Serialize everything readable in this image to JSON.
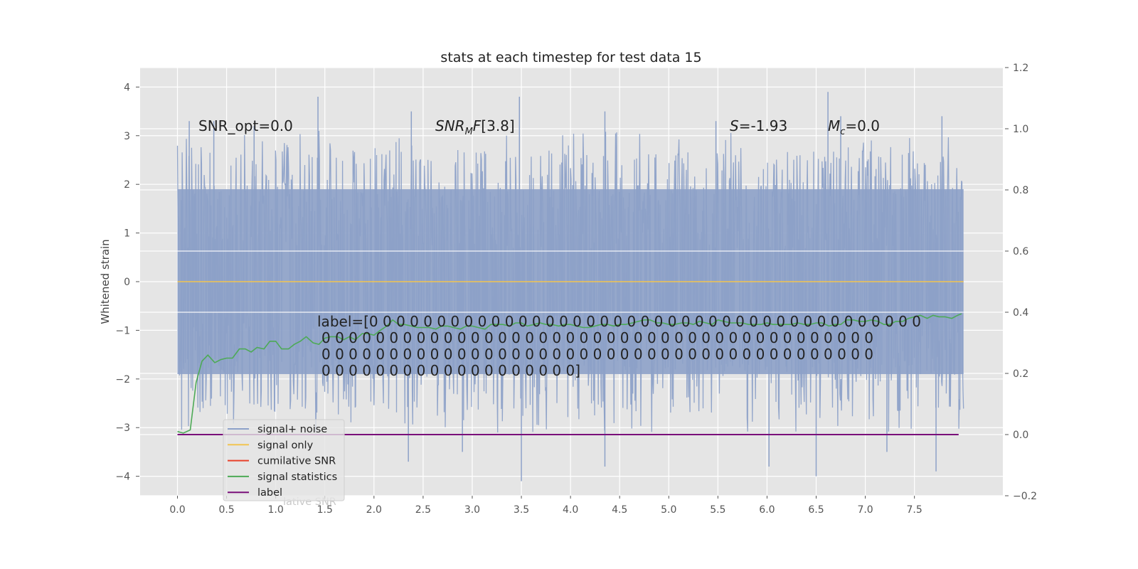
{
  "chart_data": {
    "type": "line",
    "title": "stats at each timestep for test data 15",
    "ylabel": "Whitened strain",
    "xlim": [
      -0.38,
      8.4
    ],
    "ylim": [
      -4.4,
      4.4
    ],
    "y2lim": [
      -0.2,
      1.2
    ],
    "grid": true,
    "x_ticks": [
      "0.0",
      "0.5",
      "1.0",
      "1.5",
      "2.0",
      "2.5",
      "3.0",
      "3.5",
      "4.0",
      "4.5",
      "5.0",
      "5.5",
      "6.0",
      "6.5",
      "7.0",
      "7.5"
    ],
    "y_ticks": [
      "4",
      "3",
      "2",
      "1",
      "0",
      "−1",
      "−2",
      "−3",
      "−4"
    ],
    "y2_ticks": [
      "1.2",
      "1.0",
      "0.8",
      "0.6",
      "0.4",
      "0.2",
      "0.0",
      "−0.2"
    ],
    "annotations": {
      "snr_opt": "SNR_opt=0.0",
      "snr_mf": "[3.8]",
      "s_stat": "=-1.93",
      "mc": "=0.0",
      "label_line1": "label=[0 0 0 0 0 0 0 0 0 0 0 0 0 0 0 0 0 0 0 0 0 0 0 0 0 0 0 0 0 0 0 0 0 0 0 0 0 0 0 0 0",
      "label_line2": "0 0 0 0 0 0 0 0 0 0 0 0 0 0 0 0 0 0 0 0 0 0 0 0 0 0 0 0 0 0 0 0 0 0 0 0 0 0 0 0 0",
      "label_line3": "0 0 0 0 0 0 0 0 0 0 0 0 0 0 0 0 0 0 0 0 0 0 0 0 0 0 0 0 0 0 0 0 0 0 0 0 0 0 0 0 0",
      "label_line4": "0 0 0 0 0 0 0 0 0 0 0 0 0 0 0 0 0 0 0]"
    },
    "legend": {
      "placement": "lower-left",
      "entries": [
        {
          "label": "signal+ noise",
          "color": "#8da1c8"
        },
        {
          "label": "signal only",
          "color": "#f2c451"
        },
        {
          "label": "cumilative SNR",
          "color": "#e8412b"
        },
        {
          "label": "signal statistics",
          "color": "#4daa56"
        },
        {
          "label": "label",
          "color": "#7a0f7a"
        }
      ],
      "overflow_text": "lative SNR"
    },
    "series": [
      {
        "name": "signal+ noise",
        "axis": "left",
        "color": "#8da1c8",
        "style": "dense-noise",
        "x_range": [
          0.0,
          8.0
        ],
        "band_range": [
          -1.9,
          1.9
        ],
        "typical_peak": [
          2.6,
          3.1
        ],
        "spikes": [
          {
            "x": 0.12,
            "y": 3.3
          },
          {
            "x": 0.37,
            "y": 3.3
          },
          {
            "x": 0.78,
            "y": 3.2
          },
          {
            "x": 1.43,
            "y": 3.8
          },
          {
            "x": 2.38,
            "y": 3.5
          },
          {
            "x": 3.48,
            "y": 3.8
          },
          {
            "x": 4.35,
            "y": 3.5
          },
          {
            "x": 5.48,
            "y": 3.3
          },
          {
            "x": 6.62,
            "y": 3.9
          },
          {
            "x": 6.75,
            "y": 3.4
          },
          {
            "x": 7.78,
            "y": 3.4
          },
          {
            "x": 2.35,
            "y": -3.7
          },
          {
            "x": 2.9,
            "y": -3.5
          },
          {
            "x": 3.5,
            "y": -4.1
          },
          {
            "x": 4.35,
            "y": -3.8
          },
          {
            "x": 6.02,
            "y": -3.8
          },
          {
            "x": 6.5,
            "y": -4.0
          },
          {
            "x": 7.22,
            "y": -3.5
          },
          {
            "x": 7.72,
            "y": -3.9
          }
        ]
      },
      {
        "name": "signal only",
        "axis": "left",
        "color": "#f2c451",
        "x": [
          0.0,
          8.0
        ],
        "y": [
          0.0,
          0.0
        ]
      },
      {
        "name": "signal statistics",
        "axis": "right",
        "color": "#4daa56",
        "x": [
          0.0,
          0.06,
          0.13,
          0.19,
          0.25,
          0.31,
          0.38,
          0.44,
          0.5,
          0.56,
          0.63,
          0.69,
          0.75,
          0.81,
          0.88,
          0.94,
          1.0,
          1.06,
          1.13,
          1.19,
          1.25,
          1.31,
          1.38,
          1.44,
          1.5,
          1.56,
          1.63,
          1.69,
          1.75,
          1.81,
          1.88,
          1.94,
          2.0,
          2.06,
          2.13,
          2.19,
          2.25,
          2.31,
          2.38,
          2.44,
          2.5,
          2.56,
          2.63,
          2.69,
          2.75,
          2.81,
          2.88,
          2.94,
          3.0,
          3.06,
          3.13,
          3.19,
          3.25,
          3.31,
          3.38,
          3.44,
          3.5,
          3.56,
          3.63,
          3.69,
          3.75,
          3.81,
          3.88,
          3.94,
          4.0,
          4.06,
          4.13,
          4.19,
          4.25,
          4.31,
          4.38,
          4.44,
          4.5,
          4.56,
          4.63,
          4.69,
          4.75,
          4.81,
          4.88,
          4.94,
          5.0,
          5.06,
          5.13,
          5.19,
          5.25,
          5.31,
          5.38,
          5.44,
          5.5,
          5.56,
          5.63,
          5.69,
          5.75,
          5.81,
          5.88,
          5.94,
          6.0,
          6.06,
          6.13,
          6.19,
          6.25,
          6.31,
          6.38,
          6.44,
          6.5,
          6.56,
          6.63,
          6.69,
          6.75,
          6.81,
          6.88,
          6.94,
          7.0,
          7.06,
          7.13,
          7.19,
          7.25,
          7.31,
          7.38,
          7.44,
          7.5,
          7.56,
          7.63,
          7.69,
          7.75,
          7.81,
          7.88,
          7.94,
          7.98
        ],
        "y": [
          0.01,
          0.005,
          0.015,
          0.17,
          0.24,
          0.26,
          0.235,
          0.245,
          0.25,
          0.25,
          0.28,
          0.28,
          0.27,
          0.285,
          0.28,
          0.305,
          0.305,
          0.28,
          0.28,
          0.295,
          0.305,
          0.32,
          0.3,
          0.295,
          0.315,
          0.32,
          0.32,
          0.31,
          0.32,
          0.31,
          0.33,
          0.33,
          0.325,
          0.34,
          0.355,
          0.375,
          0.36,
          0.36,
          0.355,
          0.35,
          0.35,
          0.35,
          0.345,
          0.355,
          0.355,
          0.35,
          0.345,
          0.355,
          0.355,
          0.35,
          0.345,
          0.36,
          0.36,
          0.36,
          0.355,
          0.365,
          0.365,
          0.355,
          0.36,
          0.365,
          0.36,
          0.36,
          0.355,
          0.36,
          0.36,
          0.355,
          0.35,
          0.35,
          0.355,
          0.36,
          0.36,
          0.355,
          0.36,
          0.36,
          0.365,
          0.37,
          0.375,
          0.375,
          0.365,
          0.365,
          0.36,
          0.36,
          0.365,
          0.365,
          0.36,
          0.37,
          0.365,
          0.36,
          0.375,
          0.37,
          0.365,
          0.365,
          0.365,
          0.36,
          0.36,
          0.36,
          0.365,
          0.36,
          0.36,
          0.36,
          0.36,
          0.365,
          0.36,
          0.36,
          0.365,
          0.365,
          0.355,
          0.36,
          0.36,
          0.375,
          0.375,
          0.37,
          0.37,
          0.375,
          0.37,
          0.36,
          0.36,
          0.37,
          0.37,
          0.38,
          0.385,
          0.39,
          0.38,
          0.39,
          0.385,
          0.385,
          0.38,
          0.39,
          0.395
        ]
      },
      {
        "name": "label",
        "axis": "right",
        "color": "#7a0f7a",
        "x": [
          0.0,
          7.95
        ],
        "y": [
          0.0,
          0.0
        ]
      }
    ]
  }
}
